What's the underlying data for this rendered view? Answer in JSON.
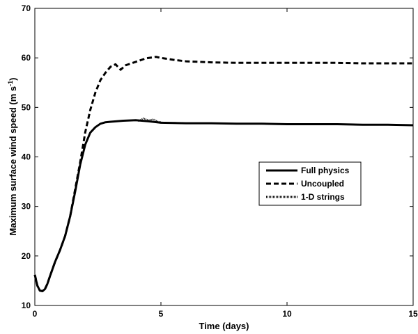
{
  "chart_data": {
    "type": "line",
    "xlabel": "Time (days)",
    "ylabel_main": "Maximum surface wind speed (m s",
    "ylabel_sup": "-1",
    "ylabel_close": ")",
    "xlim": [
      0,
      15
    ],
    "ylim": [
      10,
      70
    ],
    "xticks": [
      0,
      5,
      10,
      15
    ],
    "yticks": [
      10,
      20,
      30,
      40,
      50,
      60,
      70
    ],
    "grid": false,
    "legend_position": "center-right",
    "series": [
      {
        "name": "Full physics",
        "style": "solid",
        "color": "#000000",
        "x": [
          0,
          0.1,
          0.2,
          0.3,
          0.4,
          0.5,
          0.6,
          0.8,
          1.0,
          1.2,
          1.4,
          1.6,
          1.8,
          2.0,
          2.2,
          2.4,
          2.6,
          2.8,
          3.0,
          3.5,
          4.0,
          4.5,
          5.0,
          6.0,
          7.0,
          8.0,
          9.0,
          10.0,
          11.0,
          12.0,
          13.0,
          14.0,
          15.0
        ],
        "y": [
          16.2,
          14.0,
          13.0,
          12.9,
          13.3,
          14.4,
          15.9,
          18.8,
          21.2,
          24.0,
          28.0,
          33.0,
          38.5,
          42.5,
          44.9,
          46.0,
          46.7,
          47.0,
          47.1,
          47.3,
          47.4,
          47.2,
          46.9,
          46.8,
          46.8,
          46.7,
          46.7,
          46.6,
          46.6,
          46.6,
          46.5,
          46.5,
          46.4
        ]
      },
      {
        "name": "Uncoupled",
        "style": "dashed",
        "color": "#000000",
        "x": [
          0,
          0.1,
          0.2,
          0.3,
          0.4,
          0.5,
          0.6,
          0.8,
          1.0,
          1.2,
          1.4,
          1.6,
          1.8,
          2.0,
          2.2,
          2.4,
          2.6,
          2.8,
          3.0,
          3.2,
          3.4,
          3.6,
          4.0,
          4.4,
          4.8,
          5.0,
          5.5,
          6.0,
          7.0,
          8.0,
          9.0,
          10.0,
          11.0,
          12.0,
          13.0,
          14.0,
          15.0
        ],
        "y": [
          16.2,
          14.0,
          13.0,
          12.9,
          13.3,
          14.4,
          15.9,
          18.8,
          21.2,
          24.0,
          28.0,
          33.5,
          39.0,
          45.0,
          49.5,
          53.0,
          55.5,
          57.0,
          58.2,
          58.7,
          57.6,
          58.5,
          59.2,
          59.9,
          60.2,
          60.0,
          59.6,
          59.3,
          59.1,
          59.0,
          59.0,
          59.0,
          59.0,
          59.0,
          58.9,
          58.9,
          58.9
        ]
      },
      {
        "name": "1-D strings",
        "style": "dotted",
        "color": "#000000",
        "x": [
          4.1,
          4.3,
          4.5,
          4.7,
          4.9,
          5.2,
          5.6,
          6.0,
          7.0,
          8.0,
          9.0,
          10.0,
          11.0,
          12.0,
          13.0,
          14.0,
          15.0
        ],
        "y": [
          47.2,
          47.8,
          47.4,
          47.6,
          47.1,
          46.9,
          46.9,
          46.8,
          46.8,
          46.7,
          46.7,
          46.6,
          46.6,
          46.6,
          46.5,
          46.5,
          46.4
        ]
      }
    ]
  }
}
